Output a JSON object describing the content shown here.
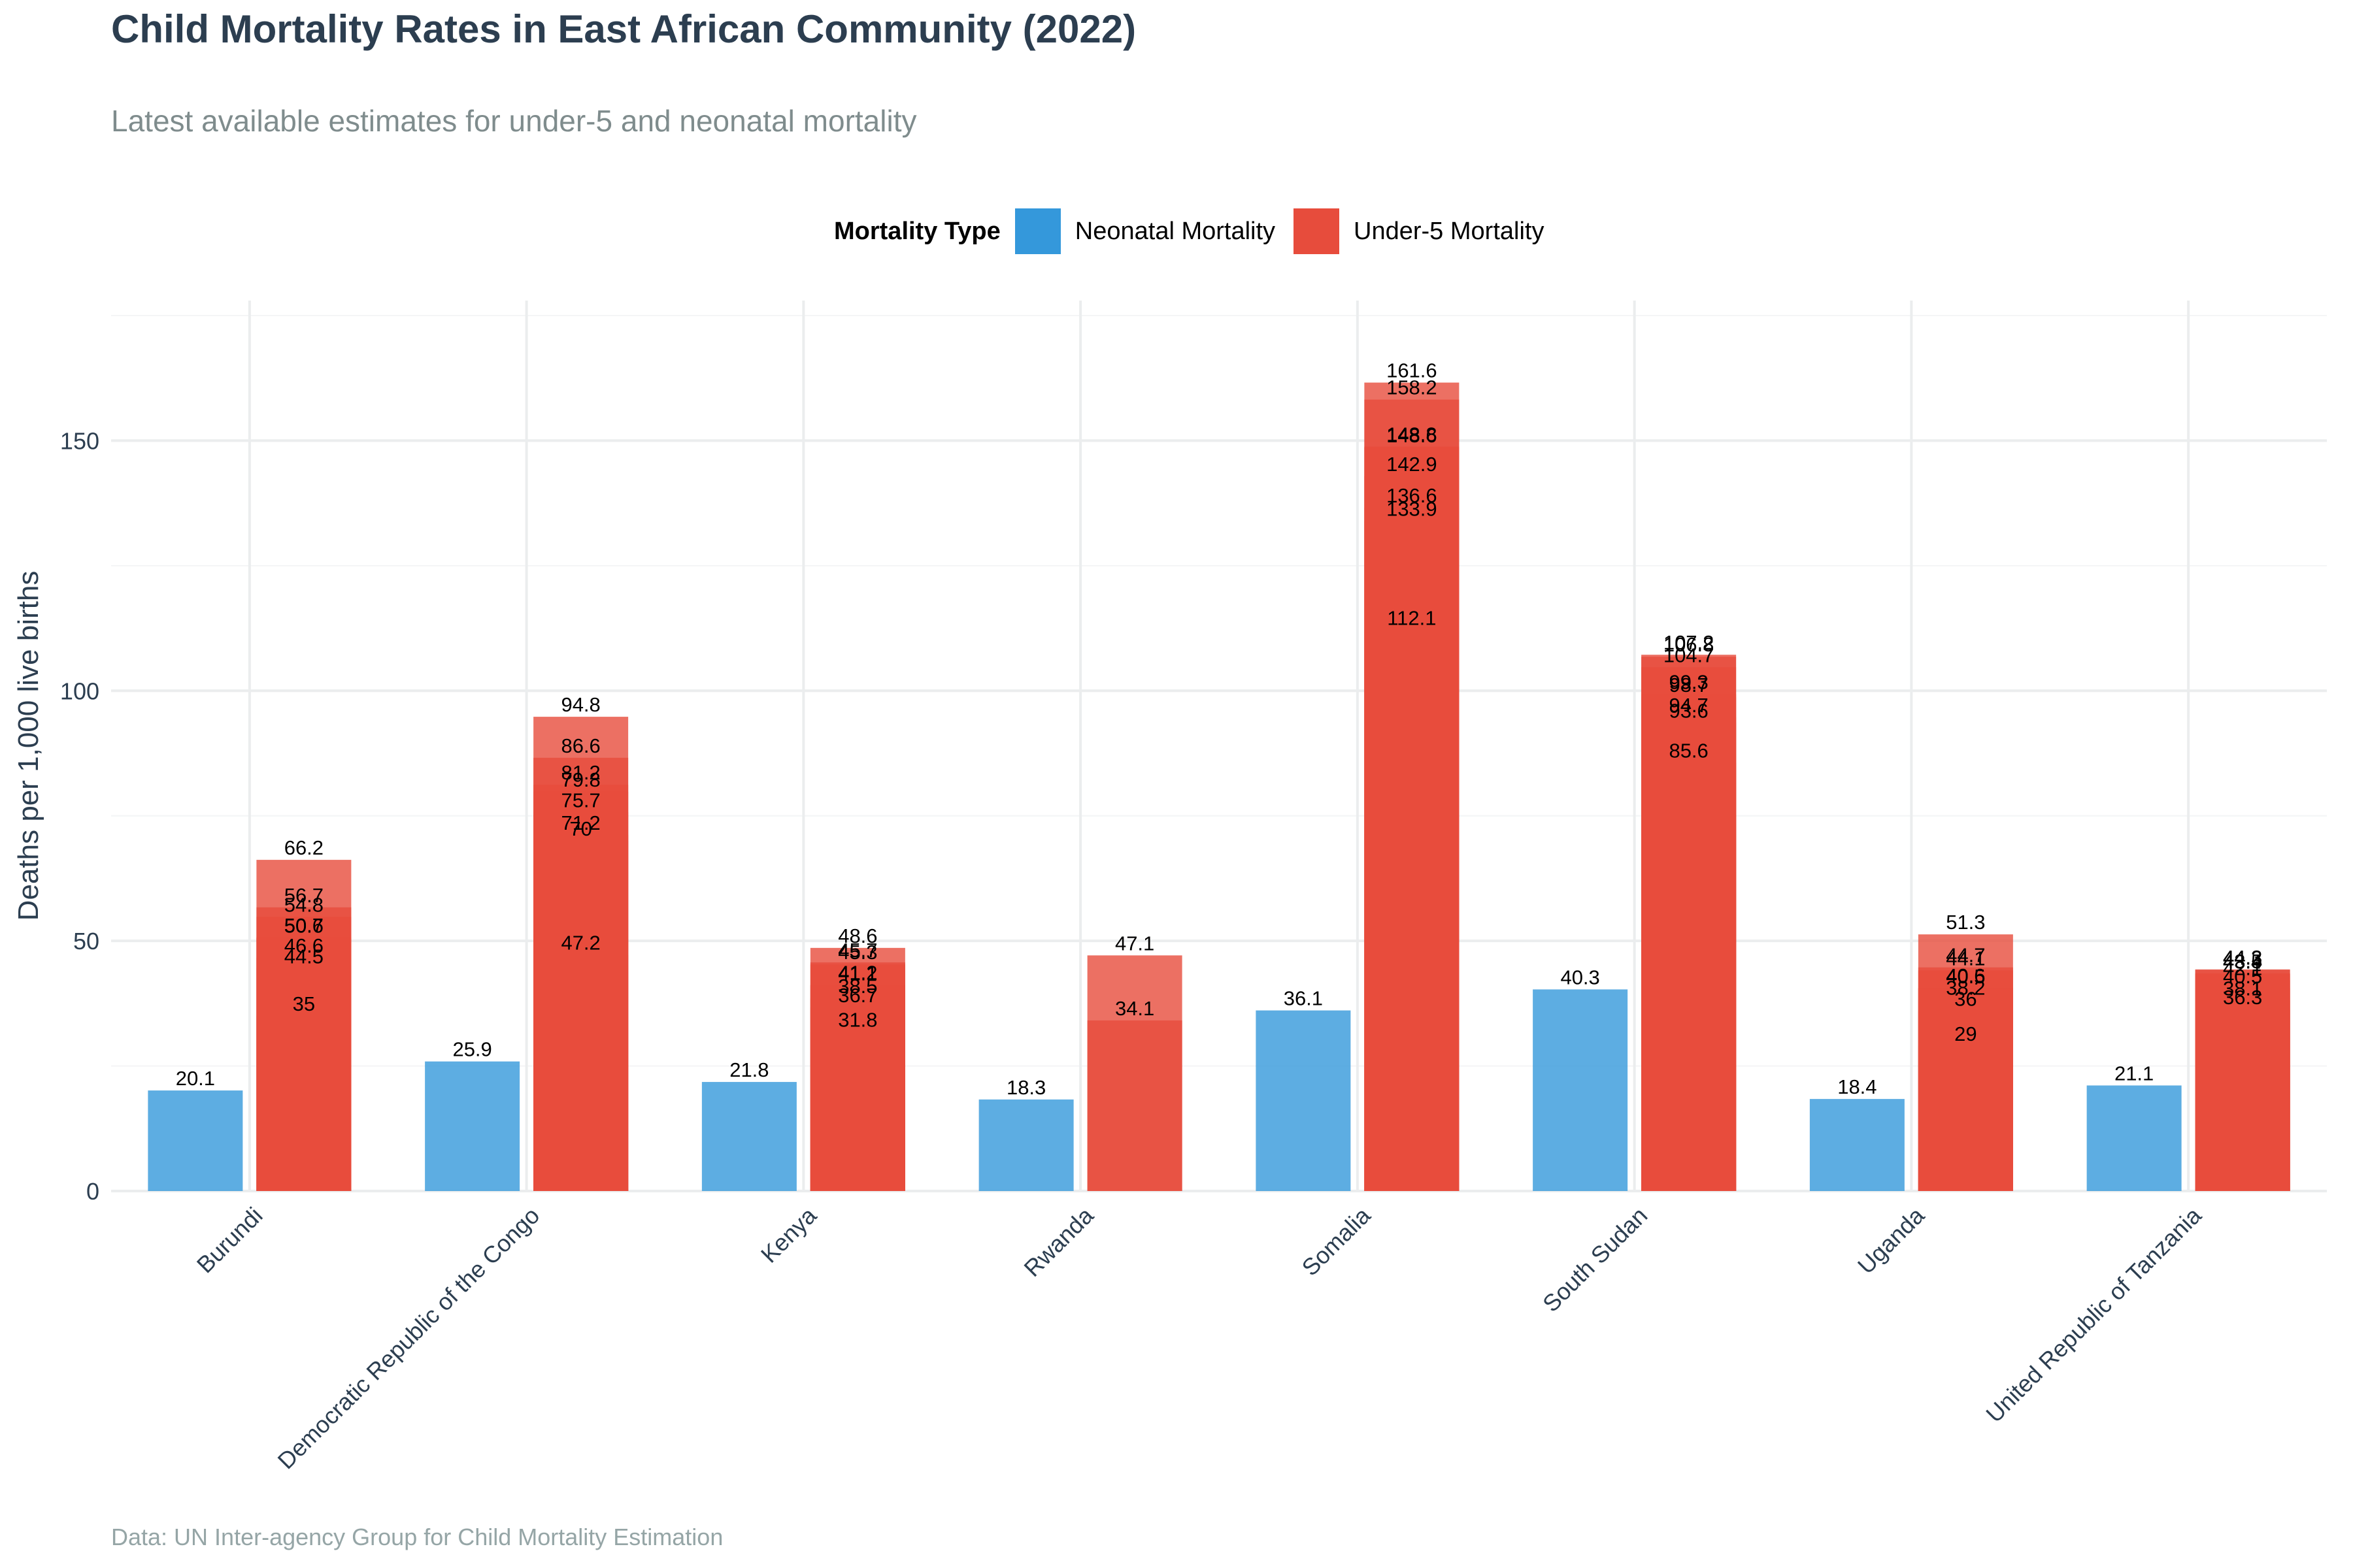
{
  "chart_data": {
    "type": "bar",
    "title": "Child Mortality Rates in East African Community (2022)",
    "subtitle": "Latest available estimates for under-5 and neonatal mortality",
    "ylabel": "Deaths per 1,000 live births",
    "xlabel": "",
    "caption": "Data: UN Inter-agency Group for Child Mortality Estimation",
    "ylim": [
      0,
      178
    ],
    "yticks": [
      0,
      50,
      100,
      150
    ],
    "grid": true,
    "legend": {
      "title": "Mortality Type",
      "placement": "top",
      "entries": [
        {
          "label": "Neonatal Mortality",
          "color": "#3498db"
        },
        {
          "label": "Under-5 Mortality",
          "color": "#e74c3c"
        }
      ]
    },
    "categories": [
      "Burundi",
      "Democratic Republic of the Congo",
      "Kenya",
      "Rwanda",
      "Somalia",
      "South Sudan",
      "Uganda",
      "United Republic of Tanzania"
    ],
    "series": [
      {
        "name": "Neonatal Mortality",
        "color": "#3498db",
        "values": [
          [
            20.1
          ],
          [
            25.9
          ],
          [
            21.8
          ],
          [
            18.3
          ],
          [
            36.1
          ],
          [
            40.3
          ],
          [
            18.4
          ],
          [
            21.1
          ]
        ]
      },
      {
        "name": "Under-5 Mortality",
        "color": "#e74c3c",
        "values": [
          [
            66.2,
            56.7,
            54.8,
            50.7,
            50.6,
            46.6,
            44.5,
            35
          ],
          [
            94.8,
            86.6,
            81.2,
            79.8,
            75.7,
            71.2,
            70,
            47.2
          ],
          [
            48.6,
            45.7,
            45.3,
            41.2,
            41.1,
            38.5,
            36.7,
            31.8
          ],
          [
            47.1,
            34.1
          ],
          [
            161.6,
            158.2,
            148.8,
            148.6,
            142.9,
            136.6,
            133.9,
            112.1
          ],
          [
            107.2,
            106.8,
            104.7,
            99.3,
            98.7,
            94.7,
            93.6,
            85.6
          ],
          [
            51.3,
            44.7,
            44.1,
            40.6,
            40.5,
            38.2,
            36,
            29
          ],
          [
            44.3,
            44.2,
            43.5,
            43.4,
            42.1,
            40.5,
            38.1,
            36.3
          ]
        ]
      }
    ]
  }
}
